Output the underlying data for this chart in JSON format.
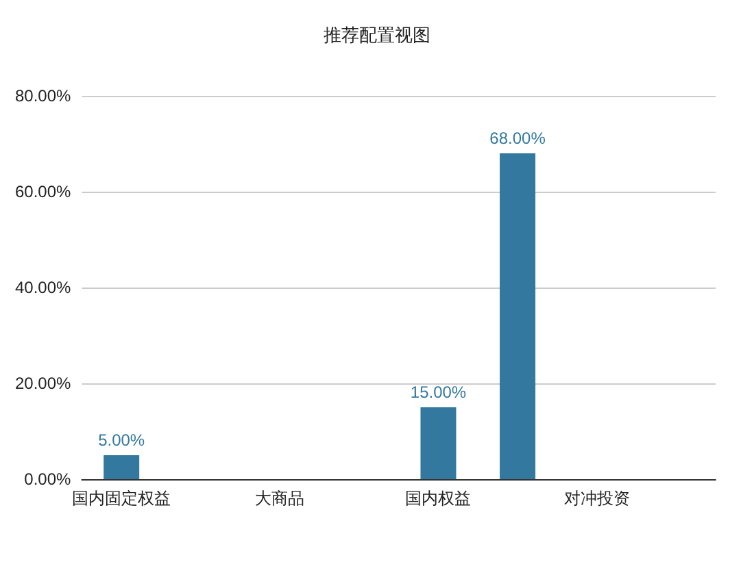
{
  "chart_data": {
    "type": "bar",
    "title": "推荐配置视图",
    "categories": [
      "国内固定权益",
      null,
      "大商品",
      null,
      "国内权益",
      null,
      "对冲投资",
      null
    ],
    "values": [
      5,
      null,
      null,
      null,
      15,
      68,
      null,
      null
    ],
    "value_labels": [
      "5.00%",
      null,
      null,
      null,
      "15.00%",
      "68.00%",
      null,
      null
    ],
    "color": "#33799f",
    "ylim": [
      0,
      80
    ],
    "yticks": [
      {
        "value": 0,
        "label": "0.00%"
      },
      {
        "value": 20,
        "label": "20.00%"
      },
      {
        "value": 40,
        "label": "40.00%"
      },
      {
        "value": 60,
        "label": "60.00%"
      },
      {
        "value": 80,
        "label": "80.00%"
      }
    ],
    "grid": "y"
  }
}
